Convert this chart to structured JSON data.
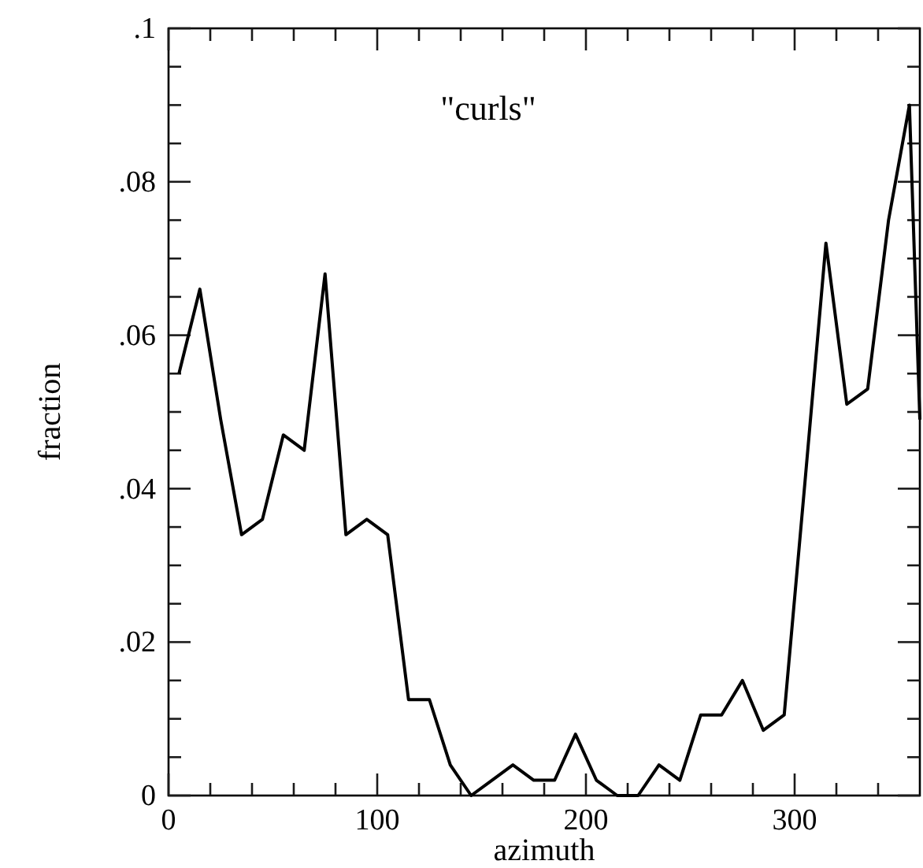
{
  "chart_data": {
    "type": "line",
    "xlabel": "azimuth",
    "ylabel": "fraction",
    "annotations": [
      "\"curls\""
    ],
    "x": [
      5,
      15,
      25,
      35,
      45,
      55,
      65,
      75,
      85,
      95,
      105,
      115,
      125,
      135,
      145,
      155,
      165,
      175,
      185,
      195,
      205,
      215,
      225,
      235,
      245,
      255,
      265,
      275,
      285,
      295,
      305,
      315,
      325,
      335,
      345,
      355,
      360
    ],
    "series": [
      {
        "color": "#000000",
        "values": [
          0.055,
          0.066,
          0.049,
          0.034,
          0.036,
          0.047,
          0.045,
          0.068,
          0.034,
          0.036,
          0.034,
          0.0125,
          0.0125,
          0.004,
          0,
          0.002,
          0.004,
          0.002,
          0.002,
          0.008,
          0.002,
          0,
          0,
          0.004,
          0.002,
          0.0105,
          0.0105,
          0.015,
          0.0085,
          0.0105,
          0.041,
          0.072,
          0.051,
          0.053,
          0.075,
          0.09,
          0.049
        ]
      }
    ],
    "xlim": [
      0,
      360
    ],
    "ylim": [
      0,
      0.1
    ],
    "xticks": [
      0,
      {
        "value": 20,
        "label": null
      },
      {
        "value": 40,
        "label": null
      },
      {
        "value": 60,
        "label": null
      },
      {
        "value": 80,
        "label": null
      },
      100,
      {
        "value": 120,
        "label": null
      },
      {
        "value": 140,
        "label": null
      },
      {
        "value": 160,
        "label": null
      },
      {
        "value": 180,
        "label": null
      },
      200,
      {
        "value": 220,
        "label": null
      },
      {
        "value": 240,
        "label": null
      },
      {
        "value": 260,
        "label": null
      },
      {
        "value": 280,
        "label": null
      },
      300,
      {
        "value": 320,
        "label": null
      },
      {
        "value": 340,
        "label": null
      }
    ],
    "yticks": [
      0,
      {
        "value": 0.005,
        "label": null
      },
      {
        "value": 0.01,
        "label": null
      },
      {
        "value": 0.015,
        "label": null
      },
      {
        "value": 0.02,
        "label": ".02"
      },
      {
        "value": 0.025,
        "label": null
      },
      {
        "value": 0.03,
        "label": null
      },
      {
        "value": 0.035,
        "label": null
      },
      {
        "value": 0.04,
        "label": ".04"
      },
      {
        "value": 0.045,
        "label": null
      },
      {
        "value": 0.05,
        "label": null
      },
      {
        "value": 0.055,
        "label": null
      },
      {
        "value": 0.06,
        "label": ".06"
      },
      {
        "value": 0.065,
        "label": null
      },
      {
        "value": 0.07,
        "label": null
      },
      {
        "value": 0.075,
        "label": null
      },
      {
        "value": 0.08,
        "label": ".08"
      },
      {
        "value": 0.085,
        "label": null
      },
      {
        "value": 0.09,
        "label": null
      },
      {
        "value": 0.095,
        "label": null
      },
      {
        "value": 0.1,
        "label": ".1"
      }
    ],
    "grid": false,
    "marker": "none",
    "line_style": "solid"
  }
}
